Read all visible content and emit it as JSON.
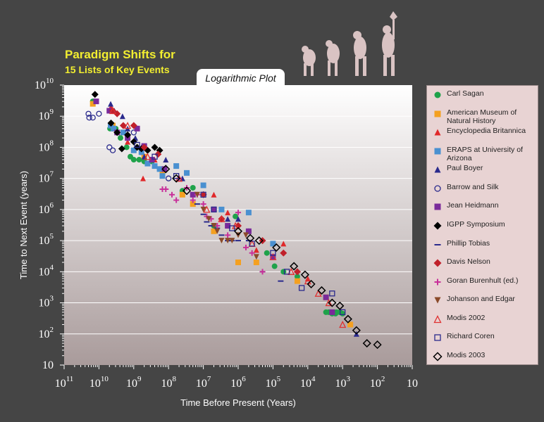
{
  "title_line1": "Paradigm Shifts for",
  "title_line2": "15 Lists of Key Events",
  "plot_label": "Logarithmic Plot",
  "chart_data": {
    "type": "scatter",
    "x_scale": "log (reversed)",
    "y_scale": "log",
    "xlabel": "Time Before Present (Years)",
    "ylabel": "Time to Next Event (years)",
    "xlim": [
      100000000000.0,
      10
    ],
    "ylim": [
      10,
      10000000000.0
    ],
    "x_ticks": [
      {
        "base": "10",
        "exp": "11"
      },
      {
        "base": "10",
        "exp": "10"
      },
      {
        "base": "10",
        "exp": "9"
      },
      {
        "base": "10",
        "exp": "8"
      },
      {
        "base": "10",
        "exp": "7"
      },
      {
        "base": "10",
        "exp": "6"
      },
      {
        "base": "10",
        "exp": "5"
      },
      {
        "base": "10",
        "exp": "4"
      },
      {
        "base": "10",
        "exp": "3"
      },
      {
        "base": "10",
        "exp": "2"
      },
      {
        "base": "10",
        "exp": ""
      }
    ],
    "y_ticks": [
      {
        "base": "10",
        "exp": ""
      },
      {
        "base": "10",
        "exp": "2"
      },
      {
        "base": "10",
        "exp": "3"
      },
      {
        "base": "10",
        "exp": "4"
      },
      {
        "base": "10",
        "exp": "5"
      },
      {
        "base": "10",
        "exp": "6"
      },
      {
        "base": "10",
        "exp": "7"
      },
      {
        "base": "10",
        "exp": "8"
      },
      {
        "base": "10",
        "exp": "9"
      },
      {
        "base": "10",
        "exp": "10"
      }
    ],
    "grid": "horizontal",
    "legend_position": "right",
    "series": [
      {
        "name": "Carl Sagan",
        "marker": "circle-filled",
        "color": "#1fa24a",
        "points": [
          [
            15000000000.0,
            3000000000.0
          ],
          [
            4800000000.0,
            400000000.0
          ],
          [
            3300000000.0,
            400000000.0
          ],
          [
            2400000000.0,
            200000000.0
          ],
          [
            1600000000.0,
            100000000.0
          ],
          [
            1250000000.0,
            50000000.0
          ],
          [
            1000000000.0,
            40000000.0
          ],
          [
            700000000.0,
            40000000.0
          ],
          [
            500000000.0,
            35000000.0
          ],
          [
            300000000.0,
            35000000.0
          ],
          [
            180000000.0,
            20000000.0
          ],
          [
            150000000.0,
            15000000.0
          ],
          [
            40000000.0,
            4000000.0
          ],
          [
            20000000.0,
            5000000.0
          ],
          [
            5000000.0,
            300000.0
          ],
          [
            1200000.0,
            600000.0
          ],
          [
            500000.0,
            200000.0
          ],
          [
            150000.0,
            40000.0
          ],
          [
            90000.0,
            15000.0
          ],
          [
            50000.0,
            10000.0
          ],
          [
            20000.0,
            7000.0
          ],
          [
            3000.0,
            500
          ],
          [
            2500.0,
            500
          ],
          [
            2000.0,
            450
          ],
          [
            1600.0,
            450
          ],
          [
            1200.0,
            500
          ],
          [
            1000.0,
            450
          ],
          [
            1500.0,
            500
          ]
        ]
      },
      {
        "name": "American Museum of Natural History",
        "marker": "square-filled",
        "color": "#f4a020",
        "points": [
          [
            15000000000.0,
            2500000000.0
          ],
          [
            4000000000.0,
            500000000.0
          ],
          [
            2000000000.0,
            300000000.0
          ],
          [
            500000000.0,
            50000000.0
          ],
          [
            150000000.0,
            15000000.0
          ],
          [
            40000000.0,
            3000000.0
          ],
          [
            20000000.0,
            1500000.0
          ],
          [
            5000000.0,
            200000.0
          ],
          [
            1000000.0,
            20000.0
          ],
          [
            300000.0,
            20000.0
          ],
          [
            20000.0,
            5000.0
          ],
          [
            3000.0,
            1500.0
          ],
          [
            600.0,
            200
          ]
        ]
      },
      {
        "name": "Encyclopedia Britannica",
        "marker": "triangle-filled",
        "color": "#e0282a",
        "points": [
          [
            4500000000.0,
            2000000000.0
          ],
          [
            3500000000.0,
            400000000.0
          ],
          [
            1500000000.0,
            150000000.0
          ],
          [
            570000000.0,
            70000000.0
          ],
          [
            540000000.0,
            10000000.0
          ],
          [
            250000000.0,
            40000000.0
          ],
          [
            5000000.0,
            3000000.0
          ],
          [
            2000000.0,
            800000.0
          ],
          [
            300000.0,
            50000.0
          ],
          [
            50000.0,
            80000.0
          ],
          [
            10000.0,
            6000.0
          ]
        ]
      },
      {
        "name": "ERAPS at University of Arizona",
        "marker": "square-filled",
        "color": "#4a90d0",
        "points": [
          [
            4600000000.0,
            500000000.0
          ],
          [
            3800000000.0,
            400000000.0
          ],
          [
            2000000000.0,
            300000000.0
          ],
          [
            1000000000.0,
            80000000.0
          ],
          [
            600000000.0,
            70000000.0
          ],
          [
            400000000.0,
            30000000.0
          ],
          [
            250000000.0,
            25000000.0
          ],
          [
            180000000.0,
            20000000.0
          ],
          [
            150000000.0,
            12000000.0
          ],
          [
            60000000.0,
            25000000.0
          ],
          [
            30000000.0,
            15000000.0
          ],
          [
            10000000.0,
            6000000.0
          ],
          [
            3000000.0,
            1000000.0
          ],
          [
            500000.0,
            800000.0
          ],
          [
            100000.0,
            80000.0
          ]
        ]
      },
      {
        "name": "Paul Boyer",
        "marker": "triangle-filled",
        "color": "#2a2a8c",
        "points": [
          [
            4600000000.0,
            2500000000.0
          ],
          [
            3600000000.0,
            1500000000.0
          ],
          [
            2100000000.0,
            1000000000.0
          ],
          [
            1500000000.0,
            400000000.0
          ],
          [
            900000000.0,
            200000000.0
          ],
          [
            600000000.0,
            100000000.0
          ],
          [
            500000000.0,
            50000000.0
          ],
          [
            120000000.0,
            40000000.0
          ],
          [
            40000000.0,
            10000000.0
          ],
          [
            2000000.0,
            500000.0
          ],
          [
            1000000.0,
            500000.0
          ],
          [
            400,
            100
          ]
        ]
      },
      {
        "name": "Barrow and Silk",
        "marker": "circle-open",
        "color": "#2a2a8c",
        "points": [
          [
            20000000000.0,
            1200000000.0
          ],
          [
            19000000000.0,
            900000000.0
          ],
          [
            15000000000.0,
            900000000.0
          ],
          [
            10000000000.0,
            1200000000.0
          ],
          [
            5000000000.0,
            100000000.0
          ],
          [
            4000000000.0,
            80000000.0
          ],
          [
            1000000000.0,
            300000000.0
          ],
          [
            100000000.0,
            10000000.0
          ]
        ]
      },
      {
        "name": "Jean Heidmann",
        "marker": "square-filled",
        "color": "#7a2a9a",
        "points": [
          [
            12000000000.0,
            3000000000.0
          ],
          [
            5000000000.0,
            1500000000.0
          ],
          [
            3000000000.0,
            300000000.0
          ],
          [
            1500000000.0,
            200000000.0
          ],
          [
            800000000.0,
            400000000.0
          ],
          [
            500000000.0,
            110000000.0
          ],
          [
            300000000.0,
            40000000.0
          ],
          [
            130000000.0,
            20000000.0
          ],
          [
            20000000.0,
            3000000.0
          ],
          [
            5000000.0,
            1000000.0
          ],
          [
            2000000.0,
            300000.0
          ],
          [
            500000.0,
            200000.0
          ],
          [
            100000.0,
            30000.0
          ],
          [
            3000.0,
            1500.0
          ],
          [
            2000.0,
            500
          ]
        ]
      },
      {
        "name": "IGPP Symposium",
        "marker": "diamond-filled",
        "color": "#000000",
        "points": [
          [
            13000000000.0,
            5000000000.0
          ],
          [
            4500000000.0,
            600000000.0
          ],
          [
            3000000000.0,
            300000000.0
          ],
          [
            2200000000.0,
            90000000.0
          ],
          [
            1500000000.0,
            250000000.0
          ],
          [
            1000000000.0,
            150000000.0
          ],
          [
            800000000.0,
            100000000.0
          ],
          [
            600000000.0,
            90000000.0
          ],
          [
            400000000.0,
            80000000.0
          ],
          [
            250000000.0,
            100000000.0
          ],
          [
            180000000.0,
            80000000.0
          ]
        ]
      },
      {
        "name": "Phillip Tobias",
        "marker": "dash",
        "color": "#2a2a8c",
        "points": [
          [
            15000000.0,
            1500000.0
          ],
          [
            10000000.0,
            700000.0
          ],
          [
            8000000.0,
            400000.0
          ],
          [
            6000000.0,
            300000.0
          ],
          [
            4000000.0,
            250000.0
          ],
          [
            3000000.0,
            150000.0
          ],
          [
            2000000.0,
            100000.0
          ],
          [
            1500000.0,
            100000.0
          ],
          [
            1000000.0,
            100000.0
          ],
          [
            500000.0,
            100000.0
          ],
          [
            200000.0,
            10000.0
          ],
          [
            60000.0,
            5000.0
          ]
        ]
      },
      {
        "name": "Davis Nelson",
        "marker": "diamond-filled",
        "color": "#c0202a",
        "points": [
          [
            4000000000.0,
            1500000000.0
          ],
          [
            3000000000.0,
            1200000000.0
          ],
          [
            2000000000.0,
            500000000.0
          ],
          [
            1000000000.0,
            500000000.0
          ],
          [
            500000000.0,
            100000000.0
          ],
          [
            200000000.0,
            60000000.0
          ],
          [
            10000000.0,
            3000000.0
          ],
          [
            3000000.0,
            500000.0
          ],
          [
            1000000.0,
            300000.0
          ],
          [
            200000.0,
            100000.0
          ],
          [
            50000.0,
            40000.0
          ],
          [
            20000.0,
            10000.0
          ]
        ]
      },
      {
        "name": "Goran Burenhult (ed.)",
        "marker": "plus",
        "color": "#c8309a",
        "points": [
          [
            150000000.0,
            4500000.0
          ],
          [
            120000000.0,
            4500000.0
          ],
          [
            80000000.0,
            3000000.0
          ],
          [
            60000000.0,
            2000000.0
          ],
          [
            50000000.0,
            10000000.0
          ],
          [
            30000000.0,
            5000000.0
          ],
          [
            20000000.0,
            2000000.0
          ],
          [
            15000000.0,
            3000000.0
          ],
          [
            10000000.0,
            1500000.0
          ],
          [
            8000000.0,
            600000.0
          ],
          [
            6000000.0,
            500000.0
          ],
          [
            4000000.0,
            300000.0
          ],
          [
            2000000.0,
            150000.0
          ],
          [
            1000000.0,
            800000.0
          ],
          [
            600000.0,
            60000.0
          ],
          [
            400000.0,
            40000.0
          ],
          [
            200000.0,
            10000.0
          ]
        ]
      },
      {
        "name": "Johanson and Edgar",
        "marker": "triangle-down",
        "color": "#8a4a2a",
        "points": [
          [
            15000000.0,
            3000000.0
          ],
          [
            10000000.0,
            1000000.0
          ],
          [
            7000000.0,
            500000.0
          ],
          [
            5000000.0,
            300000.0
          ],
          [
            4000000.0,
            200000.0
          ],
          [
            3000000.0,
            100000.0
          ],
          [
            2000000.0,
            100000.0
          ],
          [
            1500000.0,
            100000.0
          ],
          [
            1000000.0,
            150000.0
          ],
          [
            600000.0,
            150000.0
          ],
          [
            300000.0,
            30000.0
          ]
        ]
      },
      {
        "name": "Modis 2002",
        "marker": "triangle-open",
        "color": "#e03030",
        "points": [
          [
            4000000000.0,
            1500000000.0
          ],
          [
            1500000000.0,
            500000000.0
          ],
          [
            400000000.0,
            50000000.0
          ],
          [
            50000000.0,
            10000000.0
          ],
          [
            8000000.0,
            1000000.0
          ],
          [
            3000000.0,
            500000.0
          ],
          [
            1200000.0,
            300000.0
          ],
          [
            400000.0,
            80000.0
          ],
          [
            100000.0,
            30000.0
          ],
          [
            30000.0,
            10000.0
          ],
          [
            10000.0,
            5000.0
          ],
          [
            5000.0,
            2000.0
          ],
          [
            2500.0,
            1000.0
          ],
          [
            1000.0,
            200
          ]
        ]
      },
      {
        "name": "Richard Coren",
        "marker": "square-open",
        "color": "#2a2a8c",
        "points": [
          [
            800000000.0,
            120000000.0
          ],
          [
            250000000.0,
            50000000.0
          ],
          [
            60000000.0,
            12000000.0
          ],
          [
            10000000.0,
            3000000.0
          ],
          [
            5000000.0,
            1000000.0
          ],
          [
            1500000.0,
            250000.0
          ],
          [
            400000.0,
            80000.0
          ],
          [
            100000.0,
            40000.0
          ],
          [
            40000.0,
            10000.0
          ],
          [
            15000.0,
            3000.0
          ],
          [
            2000.0,
            2000.0
          ],
          [
            1000.0,
            500
          ]
        ]
      },
      {
        "name": "Modis 2003",
        "marker": "diamond-open",
        "color": "#000000",
        "points": [
          [
            120000000.0,
            20000000.0
          ],
          [
            60000000.0,
            10000000.0
          ],
          [
            30000000.0,
            4000000.0
          ],
          [
            1000000.0,
            200000.0
          ],
          [
            450000.0,
            120000.0
          ],
          [
            250000.0,
            100000.0
          ],
          [
            80000.0,
            60000.0
          ],
          [
            25000.0,
            15000.0
          ],
          [
            12000.0,
            8000.0
          ],
          [
            8000.0,
            4000.0
          ],
          [
            4000.0,
            2500.0
          ],
          [
            2000.0,
            1000.0
          ],
          [
            1200.0,
            800
          ],
          [
            700,
            300
          ],
          [
            400,
            130
          ],
          [
            200,
            50
          ],
          [
            100,
            45
          ]
        ]
      }
    ]
  }
}
